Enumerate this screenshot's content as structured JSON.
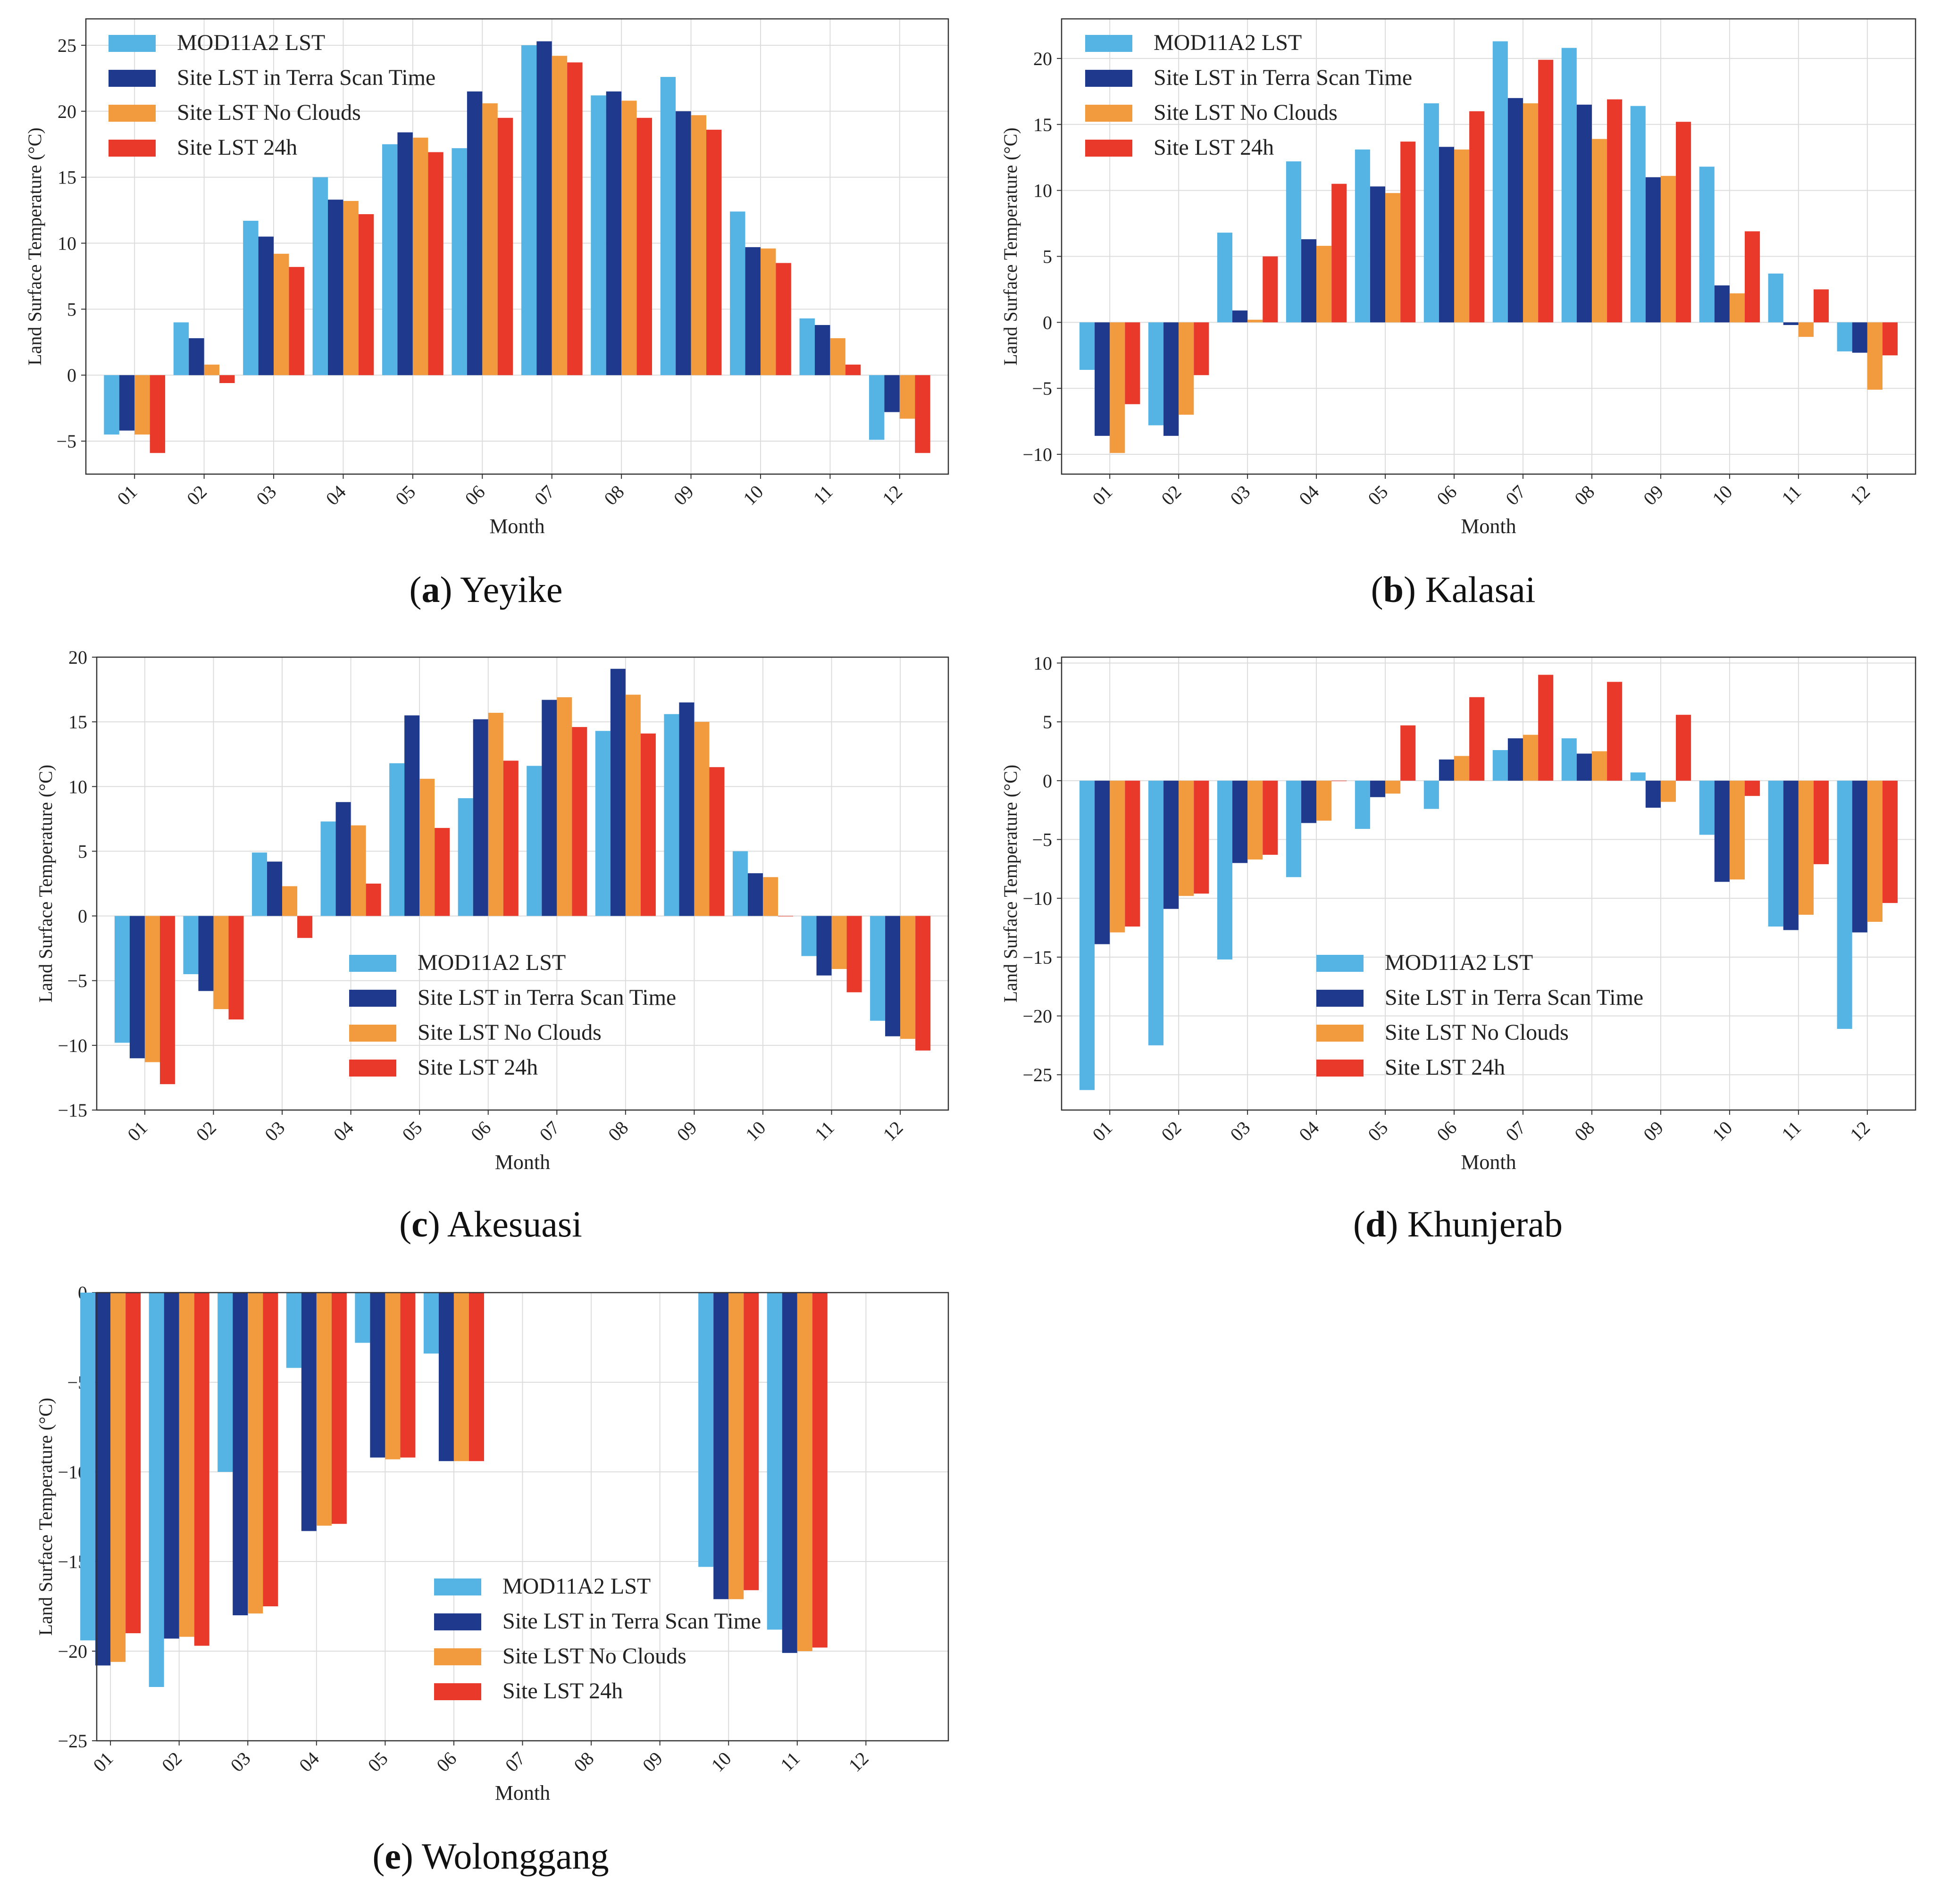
{
  "series_colors": [
    "#56b4e4",
    "#1f3a8c",
    "#f19a3e",
    "#e8392b"
  ],
  "chart_data": [
    {
      "id": "a",
      "type": "bar",
      "caption": {
        "letter": "a",
        "text": "Yeyike"
      },
      "xlabel": "Month",
      "ylabel": "Land Surface Temperature (°C)",
      "categories": [
        "01",
        "02",
        "03",
        "04",
        "05",
        "06",
        "07",
        "08",
        "09",
        "10",
        "11",
        "12"
      ],
      "ylim": [
        -7.5,
        27
      ],
      "yticks": [
        -5,
        0,
        5,
        10,
        15,
        20,
        25
      ],
      "ytick_labels": [
        "−5",
        "0",
        "5",
        "10",
        "15",
        "20",
        "25"
      ],
      "legend": "top-left",
      "grid": true,
      "series": [
        {
          "name": "MOD11A2 LST",
          "values": [
            -4.5,
            4.0,
            11.7,
            15.0,
            17.5,
            17.2,
            25.0,
            21.2,
            22.6,
            12.4,
            4.3,
            -4.9
          ]
        },
        {
          "name": "Site LST in Terra Scan Time",
          "values": [
            -4.2,
            2.8,
            10.5,
            13.3,
            18.4,
            21.5,
            25.3,
            21.5,
            20.0,
            9.7,
            3.8,
            -2.8
          ]
        },
        {
          "name": "Site LST No Clouds",
          "values": [
            -4.5,
            0.8,
            9.2,
            13.2,
            18.0,
            20.6,
            24.2,
            20.8,
            19.7,
            9.6,
            2.8,
            -3.3
          ]
        },
        {
          "name": "Site LST 24h",
          "values": [
            -5.9,
            -0.6,
            8.2,
            12.2,
            16.9,
            19.5,
            23.7,
            19.5,
            18.6,
            8.5,
            0.8,
            -5.9
          ]
        }
      ]
    },
    {
      "id": "b",
      "type": "bar",
      "caption": {
        "letter": "b",
        "text": "Kalasai"
      },
      "xlabel": "Month",
      "ylabel": "Land Surface Temperature (°C)",
      "categories": [
        "01",
        "02",
        "03",
        "04",
        "05",
        "06",
        "07",
        "08",
        "09",
        "10",
        "11",
        "12"
      ],
      "ylim": [
        -11.5,
        23
      ],
      "yticks": [
        -10,
        -5,
        0,
        5,
        10,
        15,
        20
      ],
      "ytick_labels": [
        "−10",
        "−5",
        "0",
        "5",
        "10",
        "15",
        "20"
      ],
      "legend": "top-left",
      "grid": true,
      "series": [
        {
          "name": "MOD11A2 LST",
          "values": [
            -3.6,
            -7.8,
            6.8,
            12.2,
            13.1,
            16.6,
            21.3,
            20.8,
            16.4,
            11.8,
            3.7,
            -2.2
          ]
        },
        {
          "name": "Site LST in Terra Scan Time",
          "values": [
            -8.6,
            -8.6,
            0.9,
            6.3,
            10.3,
            13.3,
            17.0,
            16.5,
            11.0,
            2.8,
            -0.2,
            -2.3
          ]
        },
        {
          "name": "Site LST No Clouds",
          "values": [
            -9.9,
            -7.0,
            0.2,
            5.8,
            9.8,
            13.1,
            16.6,
            13.9,
            11.1,
            2.2,
            -1.1,
            -5.1
          ]
        },
        {
          "name": "Site LST 24h",
          "values": [
            -6.2,
            -4.0,
            5.0,
            10.5,
            13.7,
            16.0,
            19.9,
            16.9,
            15.2,
            6.9,
            2.5,
            -2.5
          ]
        }
      ]
    },
    {
      "id": "c",
      "type": "bar",
      "caption": {
        "letter": "c",
        "text": "Akesuasi"
      },
      "xlabel": "Month",
      "ylabel": "Land Surface Temperature (°C)",
      "categories": [
        "01",
        "02",
        "03",
        "04",
        "05",
        "06",
        "07",
        "08",
        "09",
        "10",
        "11",
        "12"
      ],
      "ylim": [
        -15,
        20
      ],
      "yticks": [
        -15,
        -10,
        -5,
        0,
        5,
        10,
        15,
        20
      ],
      "ytick_labels": [
        "−15",
        "−10",
        "−5",
        "0",
        "5",
        "10",
        "15",
        "20"
      ],
      "legend": "bottom-center",
      "grid": true,
      "series": [
        {
          "name": "MOD11A2 LST",
          "values": [
            -9.8,
            -4.5,
            4.9,
            7.3,
            11.8,
            9.1,
            11.6,
            14.3,
            15.6,
            5.0,
            -3.1,
            -8.1
          ]
        },
        {
          "name": "Site LST in Terra Scan Time",
          "values": [
            -11.0,
            -5.8,
            4.2,
            8.8,
            15.5,
            15.2,
            16.7,
            19.1,
            16.5,
            3.3,
            -4.6,
            -9.3
          ]
        },
        {
          "name": "Site LST No Clouds",
          "values": [
            -11.3,
            -7.2,
            2.3,
            7.0,
            10.6,
            15.7,
            16.9,
            17.1,
            15.0,
            3.0,
            -4.1,
            -9.5
          ]
        },
        {
          "name": "Site LST 24h",
          "values": [
            -13.0,
            -8.0,
            -1.7,
            2.5,
            6.8,
            12.0,
            14.6,
            14.1,
            11.5,
            0,
            -5.9,
            -10.4
          ]
        }
      ]
    },
    {
      "id": "d",
      "type": "bar",
      "caption": {
        "letter": "d",
        "text": "Khunjerab"
      },
      "xlabel": "Month",
      "ylabel": "Land Surface Temperature (°C)",
      "categories": [
        "01",
        "02",
        "03",
        "04",
        "05",
        "06",
        "07",
        "08",
        "09",
        "10",
        "11",
        "12"
      ],
      "ylim": [
        -28,
        10.5
      ],
      "yticks": [
        -25,
        -20,
        -15,
        -10,
        -5,
        0,
        5,
        10
      ],
      "ytick_labels": [
        "−25",
        "−20",
        "−15",
        "−10",
        "−5",
        "0",
        "5",
        "10"
      ],
      "legend": "bottom-center",
      "grid": true,
      "series": [
        {
          "name": "MOD11A2 LST",
          "values": [
            -26.3,
            -22.5,
            -15.2,
            -8.2,
            -4.1,
            -2.4,
            2.6,
            3.6,
            0.7,
            -4.6,
            -12.4,
            -21.1
          ]
        },
        {
          "name": "Site LST in Terra Scan Time",
          "values": [
            -13.9,
            -10.9,
            -7.0,
            -3.6,
            -1.4,
            1.8,
            3.6,
            2.3,
            -2.3,
            -8.6,
            -12.7,
            -12.9
          ]
        },
        {
          "name": "Site LST No Clouds",
          "values": [
            -12.9,
            -9.8,
            -6.7,
            -3.4,
            -1.1,
            2.1,
            3.9,
            2.5,
            -1.8,
            -8.4,
            -11.4,
            -12.0
          ]
        },
        {
          "name": "Site LST 24h",
          "values": [
            -12.4,
            -9.6,
            -6.3,
            0,
            4.7,
            7.1,
            9.0,
            8.4,
            5.6,
            -1.3,
            -7.1,
            -10.4
          ]
        }
      ]
    },
    {
      "id": "e",
      "type": "bar",
      "caption": {
        "letter": "e",
        "text": "Wolonggang"
      },
      "xlabel": "Month",
      "ylabel": "Land Surface Temperature (°C)",
      "categories": [
        "01",
        "02",
        "03",
        "04",
        "05",
        "06",
        "07",
        "08",
        "09",
        "10",
        "11",
        "12"
      ],
      "ylim": [
        -25,
        0
      ],
      "yticks": [
        -25,
        -20,
        -15,
        -10,
        -5,
        0
      ],
      "ytick_labels": [
        "−25",
        "−20",
        "−15",
        "−10",
        "−5",
        "0"
      ],
      "legend": "bottom-center",
      "grid": true,
      "x_offset": -0.5,
      "series": [
        {
          "name": "MOD11A2 LST",
          "values": [
            -19.4,
            -22.0,
            -10.0,
            -4.2,
            -2.8,
            -3.4,
            null,
            null,
            null,
            -15.3,
            -18.8,
            null
          ]
        },
        {
          "name": "Site LST in Terra Scan Time",
          "values": [
            -20.8,
            -19.3,
            -18.0,
            -13.3,
            -9.2,
            -9.4,
            null,
            null,
            null,
            -17.1,
            -20.1,
            null
          ]
        },
        {
          "name": "Site LST No Clouds",
          "values": [
            -20.6,
            -19.2,
            -17.9,
            -13.0,
            -9.3,
            -9.4,
            null,
            null,
            null,
            -17.1,
            -20.0,
            null
          ]
        },
        {
          "name": "Site LST 24h",
          "values": [
            -19.0,
            -19.7,
            -17.5,
            -12.9,
            -9.2,
            -9.4,
            null,
            null,
            null,
            -16.6,
            -19.8,
            null
          ]
        }
      ]
    }
  ]
}
